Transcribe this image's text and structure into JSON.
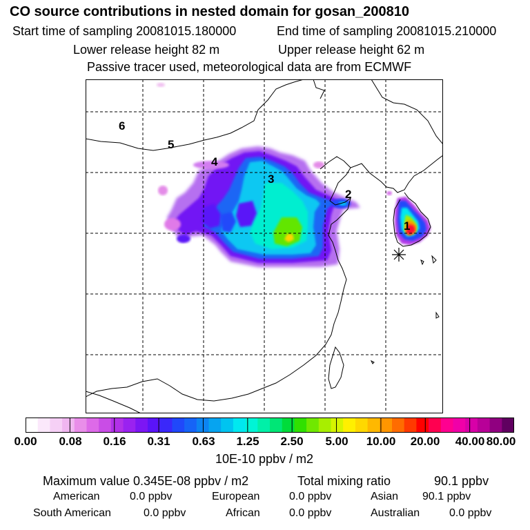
{
  "header": {
    "title": "CO  source contributions in nested domain for gosan_200810",
    "start_label": "Start time of sampling 20081015.180000",
    "end_label": "End time of sampling 20081015.210000",
    "lower_label": "Lower release height   82 m",
    "upper_label": "Upper release height   62 m",
    "note": "Passive tracer used, meteorological data are from ECMWF"
  },
  "map": {
    "labels": [
      "1",
      "2",
      "3",
      "4",
      "5",
      "6"
    ],
    "receptor_icon": "asterisk-icon"
  },
  "colorbar": {
    "colors": [
      "#ffffff",
      "#fbe8fb",
      "#f6d0f6",
      "#f0b6f0",
      "#e98ee9",
      "#dd6ae8",
      "#c94de6",
      "#b231e8",
      "#9a22f0",
      "#7c16f4",
      "#5a14f8",
      "#3a28fa",
      "#2048fa",
      "#1664f7",
      "#0c84f2",
      "#06a4f0",
      "#00c4f0",
      "#00e8f0",
      "#00f4d6",
      "#00f0a8",
      "#00e676",
      "#00dc3a",
      "#30e000",
      "#70e800",
      "#a8ee00",
      "#d6f400",
      "#fff000",
      "#ffd800",
      "#ffb800",
      "#ff9600",
      "#ff6c00",
      "#ff3a00",
      "#ff0000",
      "#ff0050",
      "#ff0090",
      "#f000a8",
      "#d800a8",
      "#b80098",
      "#900080",
      "#600060"
    ],
    "tick_labels": [
      "0.00",
      "0.08",
      "0.16",
      "0.31",
      "0.63",
      "1.25",
      "2.50",
      "5.00",
      "10.00",
      "20.00",
      "40.00",
      "80.00"
    ],
    "units": "10E-10 ppbv / m2"
  },
  "stats": {
    "max_label": "Maximum value  0.345E-08 ppbv / m2",
    "total_label": "Total mixing ratio",
    "total_value": "90.1 ppbv"
  },
  "regions": [
    {
      "name": "American",
      "value": "0.0 ppbv"
    },
    {
      "name": "European",
      "value": "0.0 ppbv"
    },
    {
      "name": "Asian",
      "value": "90.1 ppbv"
    },
    {
      "name": "South American",
      "value": "0.0 ppbv"
    },
    {
      "name": "African",
      "value": "0.0 ppbv"
    },
    {
      "name": "Australian",
      "value": "0.0 ppbv"
    }
  ]
}
